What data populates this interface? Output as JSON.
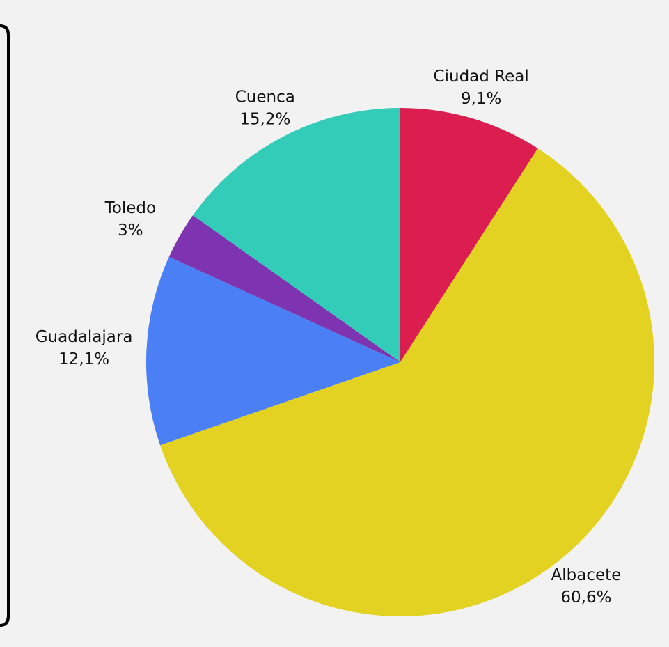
{
  "chart_data": {
    "type": "pie",
    "categories": [
      "Ciudad Real",
      "Albacete",
      "Guadalajara",
      "Toledo",
      "Cuenca"
    ],
    "values": [
      9.1,
      60.6,
      12.1,
      3,
      15.2
    ],
    "value_labels": [
      "9,1%",
      "60,6%",
      "12,1%",
      "3%",
      "15,2%"
    ],
    "colors": [
      "#dc1d50",
      "#e3d221",
      "#4a7ff5",
      "#7e33b0",
      "#33ccb8"
    ]
  }
}
